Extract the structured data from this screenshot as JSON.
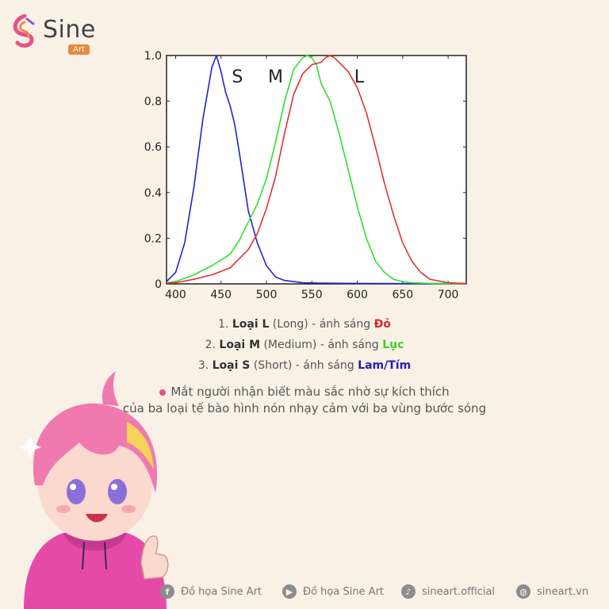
{
  "brand": {
    "name": "Sine",
    "sub": "Art"
  },
  "chart_data": {
    "type": "line",
    "xlim": [
      390,
      720
    ],
    "ylim": [
      0,
      1.0
    ],
    "xticks": [
      400,
      450,
      500,
      550,
      600,
      650,
      700
    ],
    "yticks": [
      "0",
      "0.2",
      "0.4",
      "0.6",
      "0.8",
      "1.0"
    ],
    "series": [
      {
        "name": "S",
        "color": "#2222cc",
        "x": [
          390,
          400,
          410,
          420,
          430,
          440,
          445,
          450,
          455,
          460,
          465,
          470,
          475,
          480,
          490,
          500,
          510,
          520,
          530,
          540,
          560,
          600,
          650,
          700,
          720
        ],
        "y": [
          0.01,
          0.05,
          0.18,
          0.42,
          0.72,
          0.95,
          1.0,
          0.93,
          0.84,
          0.78,
          0.7,
          0.58,
          0.45,
          0.32,
          0.18,
          0.08,
          0.03,
          0.015,
          0.01,
          0.005,
          0.003,
          0.002,
          0.001,
          0.001,
          0.001
        ]
      },
      {
        "name": "M",
        "color": "#33dd33",
        "x": [
          390,
          400,
          420,
          440,
          460,
          470,
          480,
          490,
          500,
          510,
          520,
          530,
          540,
          545,
          550,
          555,
          560,
          570,
          580,
          590,
          600,
          610,
          620,
          630,
          640,
          650,
          660,
          680,
          700,
          720
        ],
        "y": [
          0.005,
          0.01,
          0.04,
          0.08,
          0.13,
          0.19,
          0.27,
          0.35,
          0.46,
          0.62,
          0.8,
          0.94,
          0.99,
          1.0,
          0.99,
          0.96,
          0.88,
          0.8,
          0.66,
          0.5,
          0.34,
          0.2,
          0.1,
          0.05,
          0.02,
          0.01,
          0.005,
          0.002,
          0.001,
          0.001
        ]
      },
      {
        "name": "L",
        "color": "#dd3333",
        "x": [
          390,
          400,
          420,
          440,
          460,
          470,
          480,
          490,
          500,
          510,
          520,
          530,
          540,
          550,
          560,
          565,
          570,
          575,
          580,
          590,
          600,
          610,
          620,
          630,
          640,
          650,
          660,
          670,
          680,
          700,
          720
        ],
        "y": [
          0.003,
          0.005,
          0.02,
          0.04,
          0.07,
          0.11,
          0.15,
          0.22,
          0.33,
          0.47,
          0.66,
          0.83,
          0.92,
          0.96,
          0.97,
          0.99,
          1.0,
          0.99,
          0.97,
          0.93,
          0.86,
          0.75,
          0.6,
          0.44,
          0.3,
          0.18,
          0.1,
          0.05,
          0.02,
          0.005,
          0.001
        ]
      }
    ],
    "annotations": [
      {
        "text": "S",
        "x": 468,
        "y": 0.91
      },
      {
        "text": "M",
        "x": 510,
        "y": 0.91
      },
      {
        "text": "L",
        "x": 602,
        "y": 0.91
      }
    ]
  },
  "legend": [
    {
      "prefix": "1. ",
      "label": "Loại L",
      "paren": " (Long) - ánh sáng ",
      "color_word": "Đỏ",
      "cls": "red"
    },
    {
      "prefix": "2. ",
      "label": "Loại M",
      "paren": " (Medium) - ánh sáng ",
      "color_word": "Lục",
      "cls": "green"
    },
    {
      "prefix": "3. ",
      "label": "Loại S",
      "paren": " (Short) - ánh sáng ",
      "color_word": "Lam/Tím",
      "cls": "blue"
    }
  ],
  "caption": {
    "line1": "Mắt người nhận biết màu sắc nhờ sự kích thích",
    "line2": "của ba loại tế bào hình nón nhạy cảm với ba vùng bước sóng"
  },
  "footer": [
    {
      "icon": "facebook-icon",
      "glyph": "f",
      "text": "Đồ họa Sine Art"
    },
    {
      "icon": "youtube-icon",
      "glyph": "▶",
      "text": "Đồ họa Sine Art"
    },
    {
      "icon": "tiktok-icon",
      "glyph": "♪",
      "text": "sineart.official"
    },
    {
      "icon": "globe-icon",
      "glyph": "◍",
      "text": "sineart.vn"
    }
  ]
}
